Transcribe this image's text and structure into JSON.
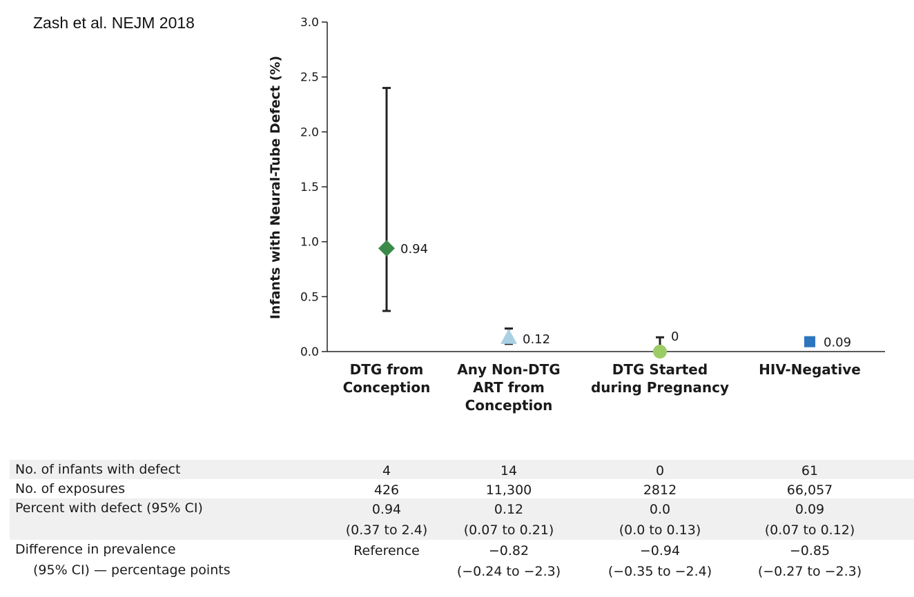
{
  "source": "Zash et al. NEJM 2018",
  "chart_data": {
    "type": "scatter",
    "ylabel": "Infants with Neural-Tube Defect (%)",
    "ylim": [
      0,
      3.0
    ],
    "yticks": [
      "0.0",
      "0.5",
      "1.0",
      "1.5",
      "2.0",
      "2.5",
      "3.0"
    ],
    "categories": [
      {
        "lines": [
          "DTG from",
          "Conception"
        ],
        "value": 0.94,
        "value_label": "0.94",
        "ci": [
          0.37,
          2.4
        ],
        "marker": "diamond",
        "color": "#3a8a4a"
      },
      {
        "lines": [
          "Any Non-DTG",
          "ART from",
          "Conception"
        ],
        "value": 0.12,
        "value_label": "0.12",
        "ci": [
          0.07,
          0.21
        ],
        "marker": "triangle",
        "color": "#a9d1e3"
      },
      {
        "lines": [
          "DTG Started",
          "during Pregnancy"
        ],
        "value": 0.0,
        "value_label": "0",
        "ci": [
          0.0,
          0.13
        ],
        "marker": "circle",
        "color": "#9ccc65"
      },
      {
        "lines": [
          "HIV-Negative"
        ],
        "value": 0.09,
        "value_label": "0.09",
        "ci": null,
        "marker": "square",
        "color": "#2e75bf"
      }
    ]
  },
  "table": {
    "rows": [
      {
        "label": [
          "No. of infants with defect"
        ],
        "cells": [
          [
            "4"
          ],
          [
            "14"
          ],
          [
            "0"
          ],
          [
            "61"
          ]
        ]
      },
      {
        "label": [
          "No. of exposures"
        ],
        "cells": [
          [
            "426"
          ],
          [
            "11,300"
          ],
          [
            "2812"
          ],
          [
            "66,057"
          ]
        ]
      },
      {
        "label": [
          "Percent with defect (95% CI)"
        ],
        "cells": [
          [
            "0.94",
            "(0.37 to 2.4)"
          ],
          [
            "0.12",
            "(0.07 to 0.21)"
          ],
          [
            "0.0",
            "(0.0 to 0.13)"
          ],
          [
            "0.09",
            "(0.07 to 0.12)"
          ]
        ]
      },
      {
        "label": [
          "Difference in prevalence",
          "(95% CI) — percentage points"
        ],
        "cells": [
          [
            "Reference"
          ],
          [
            "−0.82",
            "(−0.24 to −2.3)"
          ],
          [
            "−0.94",
            "(−0.35 to −2.4)"
          ],
          [
            "−0.85",
            "(−0.27 to −2.3)"
          ]
        ]
      }
    ]
  }
}
